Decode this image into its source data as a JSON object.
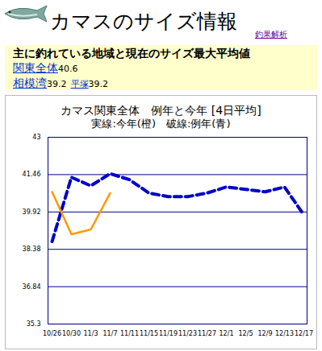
{
  "page": {
    "title": "カマスのサイズ情報",
    "link": "釣果解析",
    "region_heading": "主に釣れている地域と現在のサイズ最大平均値",
    "regions": [
      {
        "name": "関東全体",
        "value": 40.6
      },
      {
        "name": "相模湾",
        "value": 39.2
      },
      {
        "name": "平塚",
        "value": 39.2
      }
    ]
  },
  "chart_data": {
    "type": "line",
    "title": "カマス関東全体　例年と今年 [4日平均]",
    "subtitle": "実線:今年(橙)　破線:例年(青)",
    "categories": [
      "10/26",
      "10/30",
      "11/3",
      "11/7",
      "11/11",
      "11/15",
      "11/19",
      "11/23",
      "11/27",
      "12/1",
      "12/5",
      "12/9",
      "12/13",
      "12/17"
    ],
    "series": [
      {
        "name": "例年",
        "color": "#0000cc",
        "line_style": "dashed",
        "values": [
          38.7,
          41.35,
          41.0,
          41.5,
          41.25,
          40.7,
          40.55,
          40.55,
          40.7,
          40.95,
          40.85,
          40.75,
          40.95,
          39.8
        ]
      },
      {
        "name": "今年",
        "color": "#ff9900",
        "line_style": "solid",
        "values": [
          40.75,
          39.0,
          39.2,
          40.7,
          null,
          null,
          null,
          null,
          null,
          null,
          null,
          null,
          null,
          null
        ]
      }
    ],
    "ylim": [
      35.3,
      43
    ],
    "yticks": [
      35.3,
      36.84,
      38.38,
      39.92,
      41.46,
      43
    ],
    "grid": true
  }
}
